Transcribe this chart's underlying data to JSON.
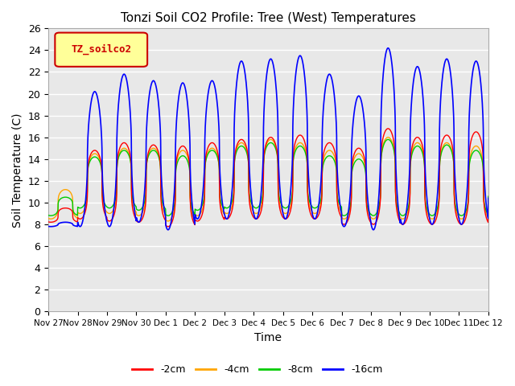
{
  "title": "Tonzi Soil CO2 Profile: Tree (West) Temperatures",
  "xlabel": "Time",
  "ylabel": "Soil Temperature (C)",
  "ylim": [
    0,
    26
  ],
  "yticks": [
    0,
    2,
    4,
    6,
    8,
    10,
    12,
    14,
    16,
    18,
    20,
    22,
    24,
    26
  ],
  "num_days": 16,
  "xtick_labels": [
    "Nov 27",
    "Nov 28",
    "Nov 29",
    "Nov 30",
    "Dec 1",
    "Dec 2",
    "Dec 3",
    "Dec 4",
    "Dec 5",
    "Dec 6",
    "Dec 7",
    "Dec 8",
    "Dec 9",
    "Dec 10",
    "Dec 11",
    "Dec 12"
  ],
  "plot_bg_color": "#e8e8e8",
  "line_colors": [
    "#ff0000",
    "#ffa500",
    "#00cc00",
    "#0000ff"
  ],
  "line_labels": [
    "-2cm",
    "-4cm",
    "-8cm",
    "-16cm"
  ],
  "legend_label": "TZ_soilco2",
  "legend_bg": "#ffff99",
  "legend_border": "#cc0000",
  "figsize": [
    6.4,
    4.8
  ],
  "dpi": 100,
  "peaks_2cm": [
    9.5,
    14.8,
    15.5,
    15.3,
    15.2,
    15.5,
    15.8,
    16.0,
    16.2,
    15.5,
    15.0,
    16.8,
    16.0,
    16.2,
    16.5,
    15.8
  ],
  "troughs_2cm": [
    8.2,
    8.5,
    8.3,
    8.2,
    7.8,
    8.3,
    8.5,
    8.5,
    8.5,
    8.5,
    8.0,
    8.0,
    8.0,
    8.0,
    8.0,
    9.8
  ],
  "peaks_4cm": [
    11.2,
    14.5,
    15.0,
    15.0,
    14.8,
    15.0,
    15.5,
    15.8,
    15.5,
    14.8,
    14.5,
    16.0,
    15.5,
    15.5,
    15.2,
    14.8
  ],
  "troughs_4cm": [
    8.5,
    9.0,
    9.0,
    8.8,
    8.3,
    8.8,
    9.0,
    9.0,
    9.0,
    9.0,
    8.5,
    8.5,
    8.5,
    8.5,
    8.5,
    10.0
  ],
  "peaks_8cm": [
    10.5,
    14.2,
    14.8,
    14.8,
    14.3,
    14.8,
    15.2,
    15.5,
    15.2,
    14.3,
    14.0,
    15.8,
    15.2,
    15.3,
    14.8,
    14.5
  ],
  "troughs_8cm": [
    8.8,
    9.5,
    9.5,
    9.3,
    8.8,
    9.3,
    9.5,
    9.5,
    9.5,
    9.5,
    8.8,
    8.8,
    8.8,
    8.8,
    8.8,
    10.5
  ],
  "peaks_16cm": [
    8.2,
    20.2,
    21.8,
    21.2,
    21.0,
    21.2,
    23.0,
    23.2,
    23.5,
    21.8,
    19.8,
    24.2,
    22.5,
    23.2,
    23.0,
    22.8
  ],
  "troughs_16cm": [
    7.8,
    7.8,
    7.8,
    8.2,
    7.5,
    8.5,
    8.5,
    8.5,
    8.5,
    8.5,
    7.8,
    7.5,
    8.0,
    8.0,
    8.0,
    10.0
  ],
  "peak_phase": 0.58,
  "sharpness": 3.5
}
